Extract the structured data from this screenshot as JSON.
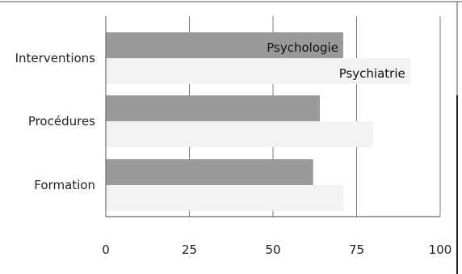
{
  "chart_data": {
    "type": "bar",
    "orientation": "horizontal",
    "categories": [
      "Interventions",
      "Procédures",
      "Formation"
    ],
    "series": [
      {
        "name": "Psychologie",
        "values": [
          71,
          64,
          62
        ],
        "color": "#9a9a9a"
      },
      {
        "name": "Psychiatrie",
        "values": [
          91,
          80,
          71
        ],
        "color": "#f2f2f2"
      }
    ],
    "xlim": [
      0,
      100
    ],
    "x_ticks": [
      0,
      25,
      50,
      75,
      100
    ],
    "grid": true,
    "legend": "inline-labels"
  }
}
